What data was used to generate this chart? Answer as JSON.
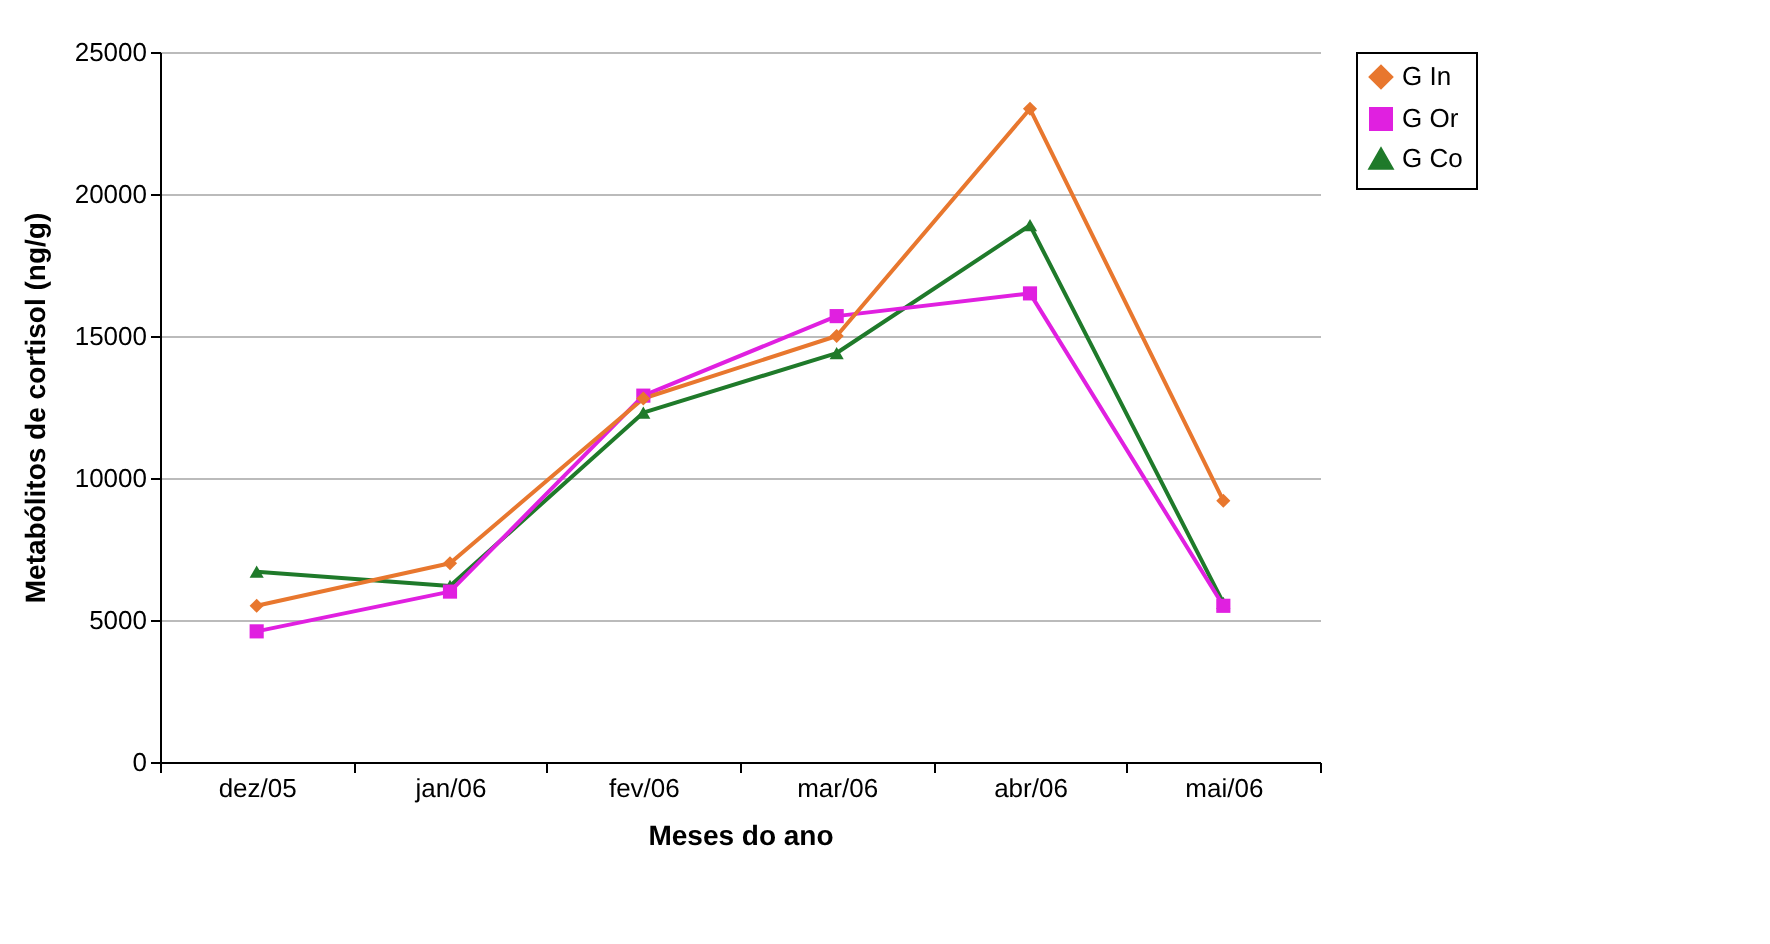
{
  "chart_data": {
    "type": "line",
    "xlabel": "Meses do ano",
    "ylabel": "Metabólitos de cortisol (ng/g)",
    "categories": [
      "dez/05",
      "jan/06",
      "fev/06",
      "mar/06",
      "abr/06",
      "mai/06"
    ],
    "series": [
      {
        "name": "G In",
        "color": "#e8772e",
        "marker": "diamond",
        "values": [
          5500,
          7000,
          12800,
          15000,
          23000,
          9200
        ]
      },
      {
        "name": "G Or",
        "color": "#e020e0",
        "marker": "square",
        "values": [
          4600,
          6000,
          12900,
          15700,
          16500,
          5500
        ]
      },
      {
        "name": "G Co",
        "color": "#1f7a2a",
        "marker": "triangle",
        "values": [
          6700,
          6200,
          12300,
          14400,
          18900,
          5600
        ]
      }
    ],
    "ylim": [
      0,
      25000
    ],
    "yticks": [
      0,
      5000,
      10000,
      15000,
      20000,
      25000
    ],
    "grid": "y",
    "legend": "right"
  }
}
